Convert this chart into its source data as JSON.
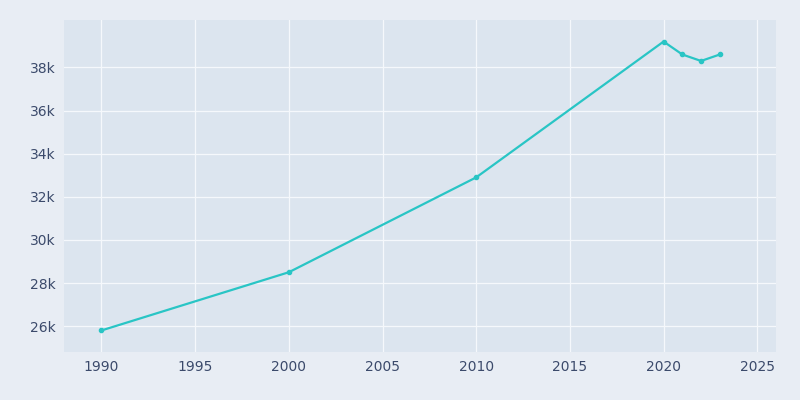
{
  "years": [
    1990,
    2000,
    2010,
    2020,
    2021,
    2022,
    2023
  ],
  "population": [
    25800,
    28500,
    32900,
    39200,
    38600,
    38300,
    38600
  ],
  "line_color": "#29c5c5",
  "marker": "o",
  "marker_size": 3,
  "line_width": 1.6,
  "bg_color": "#e8edf4",
  "axes_bg_color": "#dce5ef",
  "grid_color": "#f5f8fc",
  "tick_color": "#3b4a6b",
  "xlim": [
    1988,
    2026
  ],
  "ylim": [
    24800,
    40200
  ],
  "xticks": [
    1990,
    1995,
    2000,
    2005,
    2010,
    2015,
    2020,
    2025
  ],
  "yticks": [
    26000,
    28000,
    30000,
    32000,
    34000,
    36000,
    38000
  ],
  "ytick_labels": [
    "26k",
    "28k",
    "30k",
    "32k",
    "34k",
    "36k",
    "38k"
  ],
  "figsize": [
    8.0,
    4.0
  ],
  "dpi": 100
}
